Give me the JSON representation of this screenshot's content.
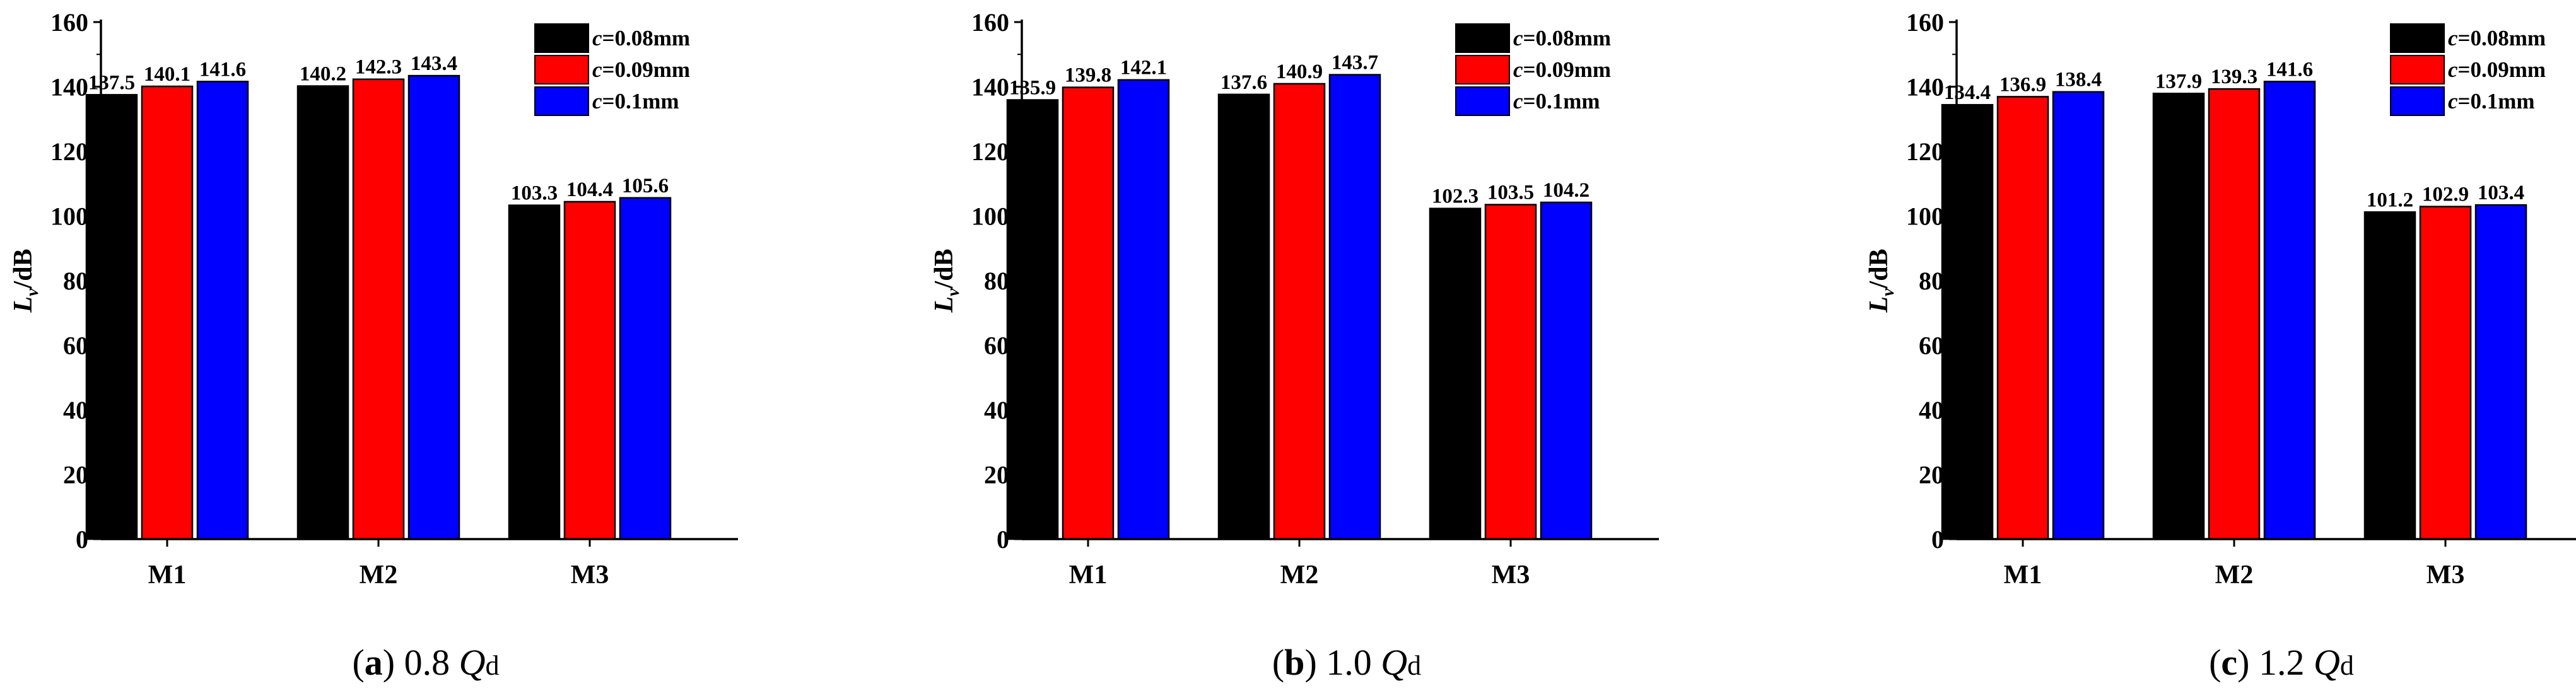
{
  "chart_data": [
    {
      "type": "bar",
      "panel_letter": "a",
      "caption_value": "0.8",
      "caption_var": "Q",
      "caption_sub": "d",
      "ylabel_main": "L",
      "ylabel_sub": "v",
      "ylabel_unit": "/dB",
      "ylim": [
        0,
        160
      ],
      "yticks": [
        "0",
        "20",
        "40",
        "60",
        "80",
        "100",
        "120",
        "140",
        "160"
      ],
      "categories": [
        "M1",
        "M2",
        "M3"
      ],
      "series": [
        {
          "name": "c",
          "legend_value": "=0.08mm",
          "color": "#000000",
          "values": [
            137.5,
            140.2,
            103.3
          ],
          "labels": [
            "137.5",
            "140.2",
            "103.3"
          ]
        },
        {
          "name": "c",
          "legend_value": "=0.09mm",
          "color": "#ff0000",
          "values": [
            140.1,
            142.3,
            104.4
          ],
          "labels": [
            "140.1",
            "142.3",
            "104.4"
          ]
        },
        {
          "name": "c",
          "legend_value": "=0.1mm",
          "color": "#0000ff",
          "values": [
            141.6,
            143.4,
            105.6
          ],
          "labels": [
            "141.6",
            "143.4",
            "105.6"
          ]
        }
      ]
    },
    {
      "type": "bar",
      "panel_letter": "b",
      "caption_value": "1.0",
      "caption_var": "Q",
      "caption_sub": "d",
      "ylabel_main": "L",
      "ylabel_sub": "v",
      "ylabel_unit": "/dB",
      "ylim": [
        0,
        160
      ],
      "yticks": [
        "0",
        "20",
        "40",
        "60",
        "80",
        "100",
        "120",
        "140",
        "160"
      ],
      "categories": [
        "M1",
        "M2",
        "M3"
      ],
      "series": [
        {
          "name": "c",
          "legend_value": "=0.08mm",
          "color": "#000000",
          "values": [
            135.9,
            137.6,
            102.3
          ],
          "labels": [
            "135.9",
            "137.6",
            "102.3"
          ]
        },
        {
          "name": "c",
          "legend_value": "=0.09mm",
          "color": "#ff0000",
          "values": [
            139.8,
            140.9,
            103.5
          ],
          "labels": [
            "139.8",
            "140.9",
            "103.5"
          ]
        },
        {
          "name": "c",
          "legend_value": "=0.1mm",
          "color": "#0000ff",
          "values": [
            142.1,
            143.7,
            104.2
          ],
          "labels": [
            "142.1",
            "143.7",
            "104.2"
          ]
        }
      ]
    },
    {
      "type": "bar",
      "panel_letter": "c",
      "caption_value": "1.2",
      "caption_var": "Q",
      "caption_sub": "d",
      "ylabel_main": "L",
      "ylabel_sub": "v",
      "ylabel_unit": "/dB",
      "ylim": [
        0,
        160
      ],
      "yticks": [
        "0",
        "20",
        "40",
        "60",
        "80",
        "100",
        "120",
        "140",
        "160"
      ],
      "categories": [
        "M1",
        "M2",
        "M3"
      ],
      "series": [
        {
          "name": "c",
          "legend_value": "=0.08mm",
          "color": "#000000",
          "values": [
            134.4,
            137.9,
            101.2
          ],
          "labels": [
            "134.4",
            "137.9",
            "101.2"
          ]
        },
        {
          "name": "c",
          "legend_value": "=0.09mm",
          "color": "#ff0000",
          "values": [
            136.9,
            139.3,
            102.9
          ],
          "labels": [
            "136.9",
            "139.3",
            "102.9"
          ]
        },
        {
          "name": "c",
          "legend_value": "=0.1mm",
          "color": "#0000ff",
          "values": [
            138.4,
            141.6,
            103.4
          ],
          "labels": [
            "138.4",
            "141.6",
            "103.4"
          ]
        }
      ]
    }
  ]
}
